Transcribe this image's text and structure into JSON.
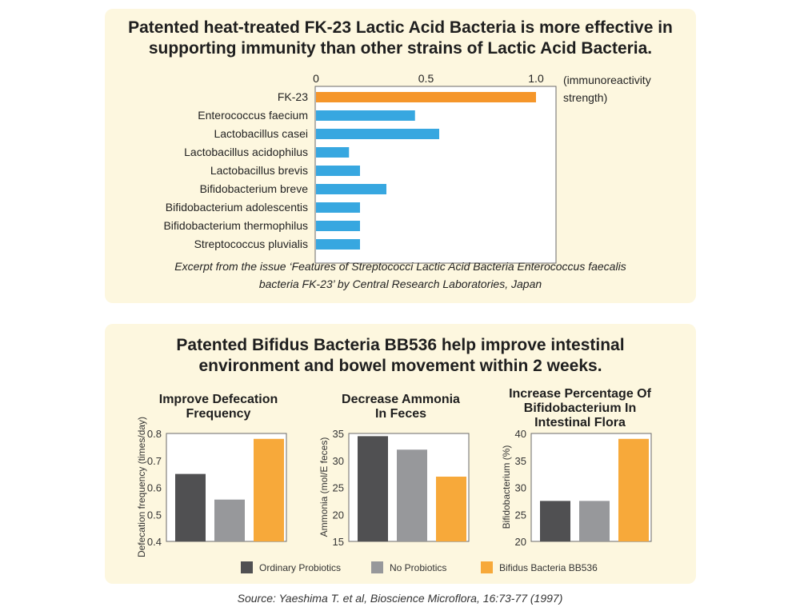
{
  "colors": {
    "orange": "#f7a93a",
    "fk23_orange": "#f5962a",
    "blue": "#37a7e0",
    "dark_gray": "#505052",
    "light_gray": "#97989b"
  },
  "panel1": {
    "title_line1": "Patented heat-treated FK-23 Lactic Acid Bacteria is more effective in",
    "title_line2": "supporting immunity than other strains of Lactic Acid Bacteria.",
    "caption_line1": "Excerpt from the issue ‘Features of Streptococci Lactic Acid Bacteria Enterococcus faecalis",
    "caption_line2": "bacteria FK-23’ by Central Research Laboratories, Japan"
  },
  "panel2": {
    "title_line1": "Patented Bifidus Bacteria BB536 help improve intestinal",
    "title_line2": "environment and bowel movement within 2 weeks.",
    "legend": [
      "Ordinary Probiotics",
      "No Probiotics",
      "Bifidus Bacteria BB536"
    ]
  },
  "source": "Source: Yaeshima T. et al, Bioscience Microflora, 16:73-77 (1997)",
  "chart_data": [
    {
      "type": "bar",
      "orientation": "horizontal",
      "categories": [
        "FK-23",
        "Enterococcus faecium",
        "Lactobacillus casei",
        "Lactobacillus acidophilus",
        "Lactobacillus brevis",
        "Bifidobacterium breve",
        "Bifidobacterium adolescentis",
        "Bifidobacterium thermophilus",
        "Streptococcus pluvialis"
      ],
      "values": [
        1.0,
        0.45,
        0.56,
        0.15,
        0.2,
        0.32,
        0.2,
        0.2,
        0.2
      ],
      "xlabel_line1": "(immunoreactivity",
      "xlabel_line2": "strength)",
      "xlim": [
        0,
        1.1
      ],
      "xticks": [
        "0",
        "0.5",
        "1.0"
      ],
      "tick_values": [
        0,
        0.5,
        1.0
      ]
    },
    {
      "type": "bar",
      "title_line1": "Improve Defecation",
      "title_line2": "Frequency",
      "ylabel": "Defecation frequency (times/day)",
      "categories": [
        "Ordinary Probiotics",
        "No Probiotics",
        "Bifidus Bacteria BB536"
      ],
      "values": [
        0.65,
        0.555,
        0.78
      ],
      "ylim": [
        0.4,
        0.8
      ],
      "yticks": [
        "0.8",
        "0.7",
        "0.6",
        "0.5",
        "0.4"
      ],
      "tick_values": [
        0.8,
        0.7,
        0.6,
        0.5,
        0.4
      ]
    },
    {
      "type": "bar",
      "title_line1": "Decrease Ammonia",
      "title_line2": "In Feces",
      "ylabel": "Ammonia (mol/E feces)",
      "categories": [
        "Ordinary Probiotics",
        "No Probiotics",
        "Bifidus Bacteria BB536"
      ],
      "values": [
        34.5,
        32,
        27
      ],
      "ylim": [
        15,
        35
      ],
      "yticks": [
        "35",
        "30",
        "25",
        "20",
        "15"
      ],
      "tick_values": [
        35,
        30,
        25,
        20,
        15
      ]
    },
    {
      "type": "bar",
      "title_line1": "Increase Percentage Of",
      "title_line2": "Bifidobacterium In",
      "title_line3": "Intestinal Flora",
      "ylabel": "Bifidobacterium (%)",
      "categories": [
        "Ordinary Probiotics",
        "No Probiotics",
        "Bifidus Bacteria BB536"
      ],
      "values": [
        27.5,
        27.5,
        39
      ],
      "ylim": [
        20,
        40
      ],
      "yticks": [
        "40",
        "35",
        "30",
        "25",
        "20"
      ],
      "tick_values": [
        40,
        35,
        30,
        25,
        20
      ]
    }
  ]
}
